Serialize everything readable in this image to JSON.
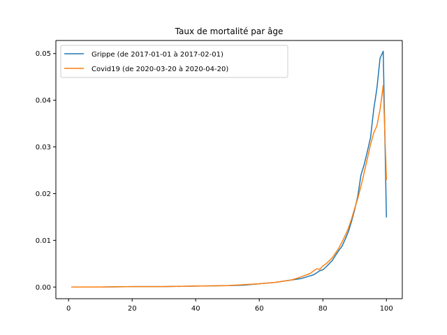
{
  "chart_data": {
    "type": "line",
    "title": "Taux de mortalité par âge",
    "xlabel": "",
    "ylabel": "",
    "xlim": [
      -4,
      105
    ],
    "ylim": [
      -0.0025,
      0.0528
    ],
    "xticks": [
      0,
      20,
      40,
      60,
      80,
      100
    ],
    "yticks": [
      0.0,
      0.01,
      0.02,
      0.03,
      0.04,
      0.05
    ],
    "ytick_labels": [
      "0.00",
      "0.01",
      "0.02",
      "0.03",
      "0.04",
      "0.05"
    ],
    "grid": false,
    "legend_position": "top-left",
    "series": [
      {
        "name": "Grippe (de 2017-01-01 à 2017-02-01)",
        "color": "#1f77b4",
        "x": [
          1,
          10,
          20,
          30,
          40,
          50,
          55,
          60,
          65,
          70,
          73,
          75,
          77,
          78,
          79,
          80,
          81,
          82,
          83,
          84,
          85,
          86,
          87,
          88,
          89,
          90,
          91,
          92,
          93,
          94,
          95,
          96,
          97,
          98,
          99,
          100
        ],
        "y": [
          0.0,
          0.0,
          0.0001,
          0.0001,
          0.0002,
          0.0003,
          0.0004,
          0.0007,
          0.001,
          0.0015,
          0.0018,
          0.0022,
          0.0026,
          0.003,
          0.0035,
          0.0037,
          0.0043,
          0.005,
          0.0057,
          0.0068,
          0.0078,
          0.0087,
          0.0102,
          0.0118,
          0.014,
          0.0165,
          0.0195,
          0.024,
          0.0262,
          0.029,
          0.032,
          0.038,
          0.0425,
          0.049,
          0.0505,
          0.015
        ]
      },
      {
        "name": "Covid19 (de 2020-03-20 à 2020-04-20)",
        "color": "#ff7f0e",
        "x": [
          1,
          10,
          20,
          30,
          40,
          50,
          55,
          60,
          65,
          70,
          72,
          74,
          76,
          77,
          78,
          79,
          80,
          81,
          82,
          83,
          84,
          85,
          86,
          87,
          88,
          89,
          90,
          91,
          92,
          93,
          94,
          95,
          96,
          97,
          98,
          99,
          100
        ],
        "y": [
          0.0,
          0.0,
          0.0001,
          0.0001,
          0.0002,
          0.0003,
          0.0005,
          0.0007,
          0.001,
          0.0015,
          0.0019,
          0.0024,
          0.0029,
          0.0034,
          0.0039,
          0.0038,
          0.0045,
          0.005,
          0.0056,
          0.0063,
          0.0073,
          0.0083,
          0.0096,
          0.011,
          0.0125,
          0.0145,
          0.0168,
          0.019,
          0.0216,
          0.0245,
          0.0275,
          0.0305,
          0.033,
          0.0345,
          0.038,
          0.0432,
          0.023
        ]
      }
    ]
  }
}
